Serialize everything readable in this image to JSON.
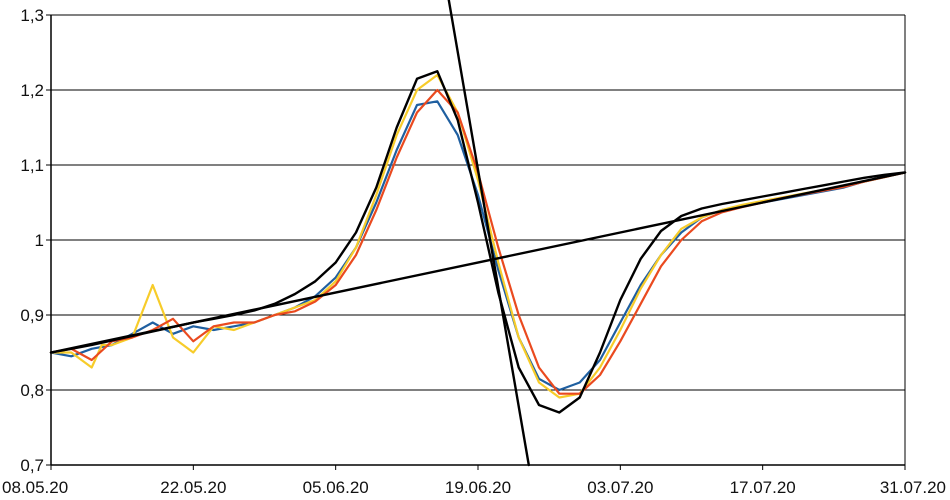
{
  "chart_data": {
    "type": "line",
    "title": "",
    "xlabel": "",
    "ylabel": "",
    "ylim": [
      0.7,
      1.3
    ],
    "yticks": [
      "0,7",
      "0,8",
      "0,9",
      "1",
      "1,1",
      "1,2",
      "1,3"
    ],
    "ytick_values": [
      0.7,
      0.8,
      0.9,
      1.0,
      1.1,
      1.2,
      1.3
    ],
    "xlim": [
      "08.05.20",
      "31.07.20"
    ],
    "xticks": [
      "08.05.20",
      "22.05.20",
      "05.06.20",
      "19.06.20",
      "03.07.20",
      "17.07.20",
      "31.07.20"
    ],
    "grid": "horizontal",
    "legend": "none",
    "series": [
      {
        "color": "#1f5fa0",
        "x": [
          "08.05.20",
          "10.05.20",
          "12.05.20",
          "14.05.20",
          "16.05.20",
          "18.05.20",
          "20.05.20",
          "22.05.20",
          "24.05.20",
          "26.05.20",
          "28.05.20",
          "30.05.20",
          "01.06.20",
          "03.06.20",
          "05.06.20",
          "07.06.20",
          "09.06.20",
          "11.06.20",
          "13.06.20",
          "15.06.20",
          "17.06.20",
          "19.06.20",
          "21.06.20",
          "23.06.20",
          "25.06.20",
          "27.06.20",
          "29.06.20",
          "01.07.20",
          "03.07.20",
          "05.07.20",
          "07.07.20",
          "09.07.20",
          "11.07.20",
          "13.07.20",
          "15.07.20",
          "17.07.20",
          "19.07.20",
          "21.07.20",
          "23.07.20",
          "25.07.20",
          "27.07.20",
          "29.07.20",
          "31.07.20"
        ],
        "values": [
          0.85,
          0.845,
          0.855,
          0.86,
          0.875,
          0.89,
          0.875,
          0.885,
          0.88,
          0.885,
          0.89,
          0.9,
          0.91,
          0.925,
          0.95,
          0.99,
          1.05,
          1.12,
          1.18,
          1.185,
          1.14,
          1.06,
          0.96,
          0.87,
          0.815,
          0.8,
          0.81,
          0.84,
          0.89,
          0.94,
          0.98,
          1.01,
          1.03,
          1.04,
          1.045,
          1.05,
          1.055,
          1.06,
          1.065,
          1.07,
          1.078,
          1.084,
          1.09
        ]
      },
      {
        "color": "#f7cc2a",
        "x": [
          "08.05.20",
          "10.05.20",
          "12.05.20",
          "13.05.20",
          "14.05.20",
          "16.05.20",
          "18.05.20",
          "20.05.20",
          "21.05.20",
          "22.05.20",
          "24.05.20",
          "26.05.20",
          "28.05.20",
          "30.05.20",
          "01.06.20",
          "03.06.20",
          "05.06.20",
          "07.06.20",
          "09.06.20",
          "11.06.20",
          "13.06.20",
          "15.06.20",
          "17.06.20",
          "19.06.20",
          "21.06.20",
          "23.06.20",
          "25.06.20",
          "27.06.20",
          "29.06.20",
          "01.07.20",
          "03.07.20",
          "05.07.20",
          "07.07.20",
          "09.07.20",
          "11.07.20",
          "13.07.20",
          "15.07.20",
          "17.07.20",
          "19.07.20",
          "21.07.20",
          "23.07.20",
          "25.07.20",
          "27.07.20",
          "29.07.20",
          "31.07.20"
        ],
        "values": [
          0.85,
          0.85,
          0.83,
          0.86,
          0.86,
          0.87,
          0.94,
          0.87,
          0.86,
          0.85,
          0.885,
          0.88,
          0.89,
          0.9,
          0.91,
          0.92,
          0.945,
          0.99,
          1.06,
          1.14,
          1.2,
          1.22,
          1.17,
          1.08,
          0.97,
          0.87,
          0.81,
          0.79,
          0.795,
          0.83,
          0.88,
          0.935,
          0.98,
          1.015,
          1.03,
          1.04,
          1.047,
          1.052,
          1.057,
          1.062,
          1.067,
          1.072,
          1.078,
          1.084,
          1.09
        ]
      },
      {
        "color": "#ea4a1f",
        "x": [
          "08.05.20",
          "10.05.20",
          "12.05.20",
          "14.05.20",
          "16.05.20",
          "18.05.20",
          "20.05.20",
          "22.05.20",
          "24.05.20",
          "26.05.20",
          "28.05.20",
          "30.05.20",
          "01.06.20",
          "03.06.20",
          "05.06.20",
          "07.06.20",
          "09.06.20",
          "11.06.20",
          "13.06.20",
          "15.06.20",
          "17.06.20",
          "19.06.20",
          "21.06.20",
          "23.06.20",
          "25.06.20",
          "27.06.20",
          "29.06.20",
          "01.07.20",
          "03.07.20",
          "05.07.20",
          "07.07.20",
          "09.07.20",
          "11.07.20",
          "13.07.20",
          "15.07.20",
          "17.07.20",
          "19.07.20",
          "21.07.20",
          "23.07.20",
          "25.07.20",
          "27.07.20",
          "29.07.20",
          "31.07.20"
        ],
        "values": [
          0.85,
          0.855,
          0.84,
          0.865,
          0.87,
          0.88,
          0.895,
          0.865,
          0.885,
          0.89,
          0.89,
          0.9,
          0.905,
          0.918,
          0.94,
          0.98,
          1.04,
          1.11,
          1.17,
          1.2,
          1.17,
          1.09,
          0.99,
          0.9,
          0.83,
          0.795,
          0.795,
          0.82,
          0.865,
          0.915,
          0.965,
          1.0,
          1.025,
          1.037,
          1.044,
          1.05,
          1.056,
          1.061,
          1.066,
          1.071,
          1.078,
          1.084,
          1.09
        ]
      },
      {
        "color": "#000000",
        "x": [
          "08.05.20",
          "10.05.20",
          "12.05.20",
          "14.05.20",
          "16.05.20",
          "18.05.20",
          "20.05.20",
          "22.05.20",
          "24.05.20",
          "26.05.20",
          "28.05.20",
          "30.05.20",
          "01.06.20",
          "03.06.20",
          "05.06.20",
          "07.06.20",
          "09.06.20",
          "11.06.20",
          "13.06.20",
          "15.06.20",
          "17.06.20",
          "19.06.20",
          "21.06.20",
          "23.06.20",
          "25.06.20",
          "27.06.20",
          "29.06.20",
          "01.07.20",
          "03.07.20",
          "05.07.20",
          "07.07.20",
          "09.07.20",
          "11.07.20",
          "13.07.20",
          "15.07.20",
          "17.07.20",
          "19.07.20",
          "21.07.20",
          "23.07.20",
          "25.07.20",
          "27.07.20",
          "29.07.20",
          "31.07.20"
        ],
        "values": [
          0.85,
          0.855,
          0.86,
          0.866,
          0.872,
          0.878,
          0.884,
          0.89,
          0.895,
          0.9,
          0.906,
          0.915,
          0.928,
          0.945,
          0.97,
          1.01,
          1.07,
          1.15,
          1.215,
          1.225,
          1.16,
          1.05,
          0.93,
          0.83,
          0.78,
          0.77,
          0.79,
          0.85,
          0.92,
          0.975,
          1.012,
          1.032,
          1.042,
          1.048,
          1.053,
          1.058,
          1.063,
          1.068,
          1.073,
          1.078,
          1.083,
          1.087,
          1.09
        ]
      },
      {
        "color": "#000000",
        "x": [
          "08.05.20",
          "31.07.20"
        ],
        "values": [
          0.85,
          1.09
        ]
      },
      {
        "color": "#000000",
        "x": [
          "16.06.20",
          "24.06.20"
        ],
        "values": [
          1.33,
          0.7
        ]
      }
    ]
  }
}
